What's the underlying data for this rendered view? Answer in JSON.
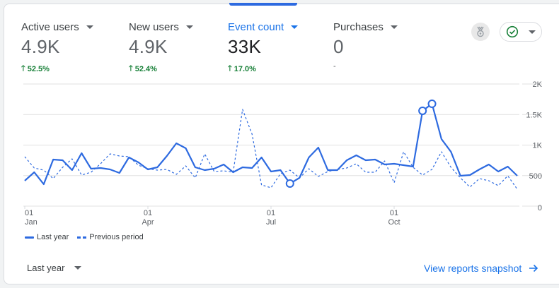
{
  "metrics": [
    {
      "label": "Active users",
      "value": "4.9K",
      "change": "52.5%",
      "trend": "up"
    },
    {
      "label": "New users",
      "value": "4.9K",
      "change": "52.4%",
      "trend": "up"
    },
    {
      "label": "Event count",
      "value": "33K",
      "change": "17.0%",
      "trend": "up",
      "active": true
    },
    {
      "label": "Purchases",
      "value": "0",
      "change": "-",
      "trend": "none"
    }
  ],
  "toolbar": {
    "badge_icon": "medal-icon",
    "status_icon": "check-circle-icon",
    "status_color": "#188038"
  },
  "footer": {
    "range_label": "Last year",
    "link_label": "View reports snapshot"
  },
  "colors": {
    "accent": "#1a73e8",
    "series": "#2d6ae0",
    "positive": "#188038"
  },
  "chart_data": {
    "type": "line",
    "title": "Event count",
    "xlabel": "",
    "ylabel": "",
    "ylim": [
      0,
      2000
    ],
    "yticks": [
      {
        "value": 0,
        "label": "0"
      },
      {
        "value": 500,
        "label": "500"
      },
      {
        "value": 1000,
        "label": "1K"
      },
      {
        "value": 1500,
        "label": "1.5K"
      },
      {
        "value": 2000,
        "label": "2K"
      }
    ],
    "xticks": [
      {
        "index": 0,
        "day": "01",
        "month": "Jan"
      },
      {
        "index": 13,
        "day": "01",
        "month": "Apr"
      },
      {
        "index": 26,
        "day": "01",
        "month": "Jul"
      },
      {
        "index": 39,
        "day": "01",
        "month": "Oct"
      }
    ],
    "grid": true,
    "legend_position": "bottom-left",
    "series": [
      {
        "name": "Last year",
        "style": "solid",
        "values": [
          416,
          555,
          358,
          763,
          751,
          590,
          867,
          613,
          624,
          601,
          543,
          798,
          717,
          601,
          636,
          821,
          1029,
          948,
          636,
          590,
          613,
          682,
          555,
          636,
          624,
          798,
          566,
          590,
          370,
          462,
          798,
          960,
          590,
          590,
          751,
          832,
          751,
          763,
          682,
          694,
          671,
          647,
          1561,
          1676,
          1098,
          890,
          497,
          509,
          601,
          682,
          566,
          647,
          497
        ],
        "anomaly_indices": [
          28,
          42,
          43
        ]
      },
      {
        "name": "Previous period",
        "style": "dashed",
        "values": [
          809,
          624,
          590,
          451,
          636,
          775,
          509,
          555,
          694,
          855,
          821,
          809,
          671,
          613,
          590,
          601,
          520,
          659,
          462,
          855,
          566,
          578,
          555,
          1584,
          1179,
          347,
          301,
          532,
          590,
          462,
          613,
          486,
          566,
          601,
          624,
          694,
          555,
          555,
          740,
          381,
          890,
          636,
          509,
          601,
          890,
          636,
          462,
          312,
          451,
          416,
          335,
          497,
          277
        ]
      }
    ]
  }
}
